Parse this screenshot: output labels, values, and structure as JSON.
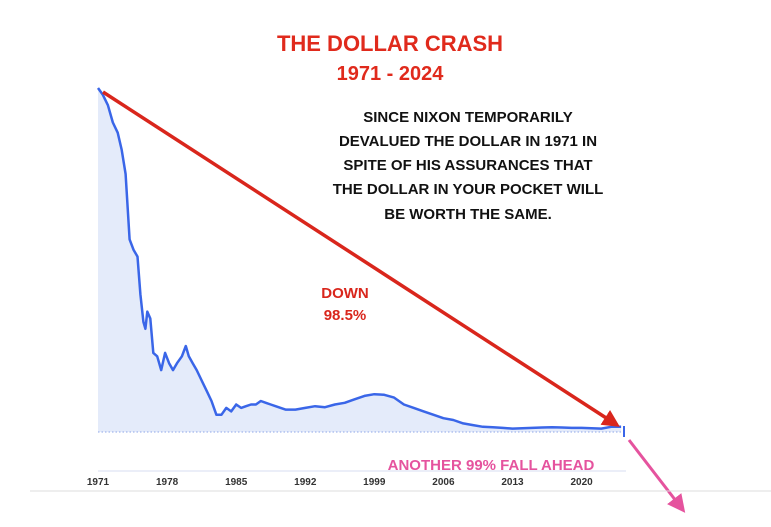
{
  "chart_data": {
    "type": "area",
    "title": "THE DOLLAR CRASH",
    "subtitle": "1971 - 2024",
    "xlabel": "",
    "ylabel": "",
    "categories": [
      "1971",
      "1978",
      "1985",
      "1992",
      "1999",
      "2006",
      "2013",
      "2020"
    ],
    "xlim": [
      1971,
      2024.5
    ],
    "ylim": [
      0,
      100
    ],
    "grid": false,
    "series": [
      {
        "color": "#3a66e8",
        "fill": "#e4ebfa",
        "points": [
          [
            1971.0,
            100
          ],
          [
            1971.5,
            98
          ],
          [
            1972.0,
            95
          ],
          [
            1972.5,
            90
          ],
          [
            1973.0,
            87
          ],
          [
            1973.4,
            82
          ],
          [
            1973.8,
            75
          ],
          [
            1974.2,
            56
          ],
          [
            1974.6,
            53
          ],
          [
            1975.0,
            51
          ],
          [
            1975.3,
            40
          ],
          [
            1975.6,
            32
          ],
          [
            1975.8,
            30
          ],
          [
            1976.0,
            35
          ],
          [
            1976.3,
            33
          ],
          [
            1976.6,
            23
          ],
          [
            1977.0,
            22
          ],
          [
            1977.4,
            18
          ],
          [
            1977.8,
            23
          ],
          [
            1978.2,
            20
          ],
          [
            1978.6,
            18
          ],
          [
            1979.0,
            20
          ],
          [
            1979.5,
            22
          ],
          [
            1979.9,
            25
          ],
          [
            1980.2,
            22
          ],
          [
            1980.6,
            20
          ],
          [
            1981.0,
            18
          ],
          [
            1981.5,
            15
          ],
          [
            1982.0,
            12
          ],
          [
            1982.5,
            9
          ],
          [
            1983.0,
            5
          ],
          [
            1983.5,
            5
          ],
          [
            1984.0,
            7
          ],
          [
            1984.5,
            6
          ],
          [
            1985.0,
            8
          ],
          [
            1985.5,
            7
          ],
          [
            1986.0,
            7.5
          ],
          [
            1986.5,
            8
          ],
          [
            1987.0,
            8
          ],
          [
            1987.5,
            9
          ],
          [
            1988.0,
            8.5
          ],
          [
            1988.5,
            8
          ],
          [
            1989.0,
            7.5
          ],
          [
            1990.0,
            6.5
          ],
          [
            1991.0,
            6.5
          ],
          [
            1992.0,
            7
          ],
          [
            1993.0,
            7.5
          ],
          [
            1994.0,
            7.2
          ],
          [
            1995.0,
            8
          ],
          [
            1996.0,
            8.5
          ],
          [
            1997.0,
            9.5
          ],
          [
            1998.0,
            10.5
          ],
          [
            1999.0,
            11
          ],
          [
            2000.0,
            10.8
          ],
          [
            2001.0,
            10
          ],
          [
            2002.0,
            8
          ],
          [
            2003.0,
            7
          ],
          [
            2004.0,
            6
          ],
          [
            2005.0,
            5
          ],
          [
            2006.0,
            4
          ],
          [
            2007.0,
            3.5
          ],
          [
            2008.0,
            2.5
          ],
          [
            2009.0,
            2
          ],
          [
            2010.0,
            1.5
          ],
          [
            2011.0,
            1.4
          ],
          [
            2012.0,
            1.2
          ],
          [
            2013.0,
            1
          ],
          [
            2014.0,
            1.1
          ],
          [
            2015.0,
            1.2
          ],
          [
            2016.0,
            1.3
          ],
          [
            2017.0,
            1.4
          ],
          [
            2018.0,
            1.3
          ],
          [
            2019.0,
            1.2
          ],
          [
            2020.0,
            1.2
          ],
          [
            2021.0,
            1.1
          ],
          [
            2022.0,
            1
          ],
          [
            2023.0,
            1.5
          ],
          [
            2024.0,
            1.5
          ]
        ]
      }
    ],
    "annotations": {
      "description": [
        "SINCE NIXON TEMPORARILY",
        "DEVALUED THE DOLLAR IN 1971 IN",
        "SPITE OF HIS ASSURANCES THAT",
        "THE DOLLAR IN YOUR POCKET WILL",
        "BE WORTH THE SAME."
      ],
      "down_label": "DOWN",
      "down_value": "98.5%",
      "forecast_label": "ANOTHER  99% FALL AHEAD"
    },
    "colors": {
      "title": "#e02a1c",
      "down_arrow": "#d9261c",
      "forecast_arrow": "#e5539e",
      "text": "#111111",
      "axis_labels": "#333333"
    }
  }
}
